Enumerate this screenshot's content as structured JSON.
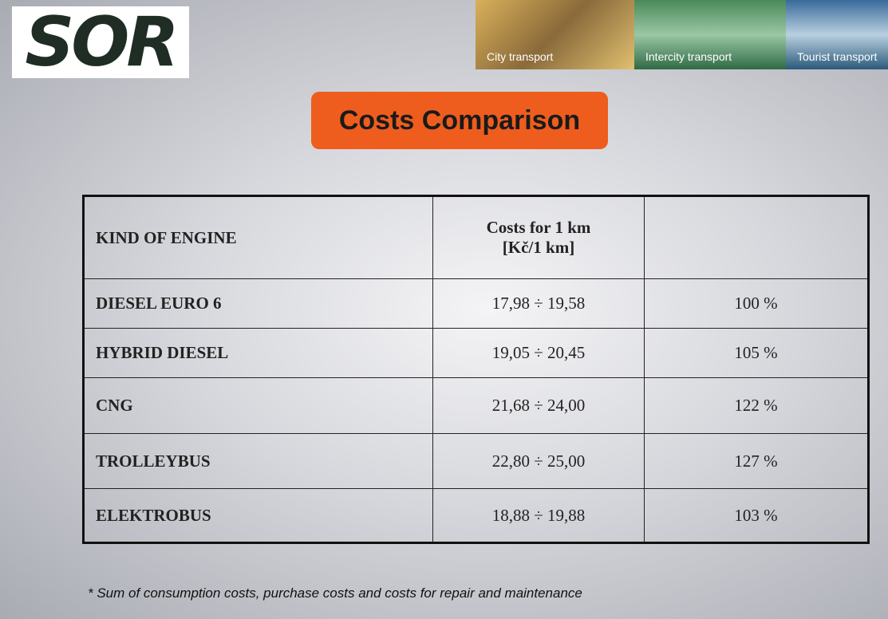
{
  "logo": "SOR",
  "banner": [
    "City transport",
    "Intercity transport",
    "Tourist transport"
  ],
  "title": "Costs Comparison",
  "table": {
    "header": {
      "engine": "KIND OF ENGINE",
      "costs": [
        "Costs for 1 km",
        "[Kč/1 km]"
      ]
    },
    "rows": [
      [
        "DIESEL  EURO 6",
        "17,98 ÷ 19,58",
        "100 %"
      ],
      [
        "HYBRID DIESEL",
        "19,05 ÷ 20,45",
        "105 %"
      ],
      [
        "CNG",
        "21,68 ÷ 24,00",
        "122 %"
      ],
      [
        "TROLLEYBUS",
        "22,80 ÷ 25,00",
        "127 %"
      ],
      [
        "ELEKTROBUS",
        "18,88 ÷ 19,88",
        "103 %"
      ]
    ]
  },
  "footnote": "* Sum of  consumption costs, purchase costs and costs for repair and maintenance"
}
